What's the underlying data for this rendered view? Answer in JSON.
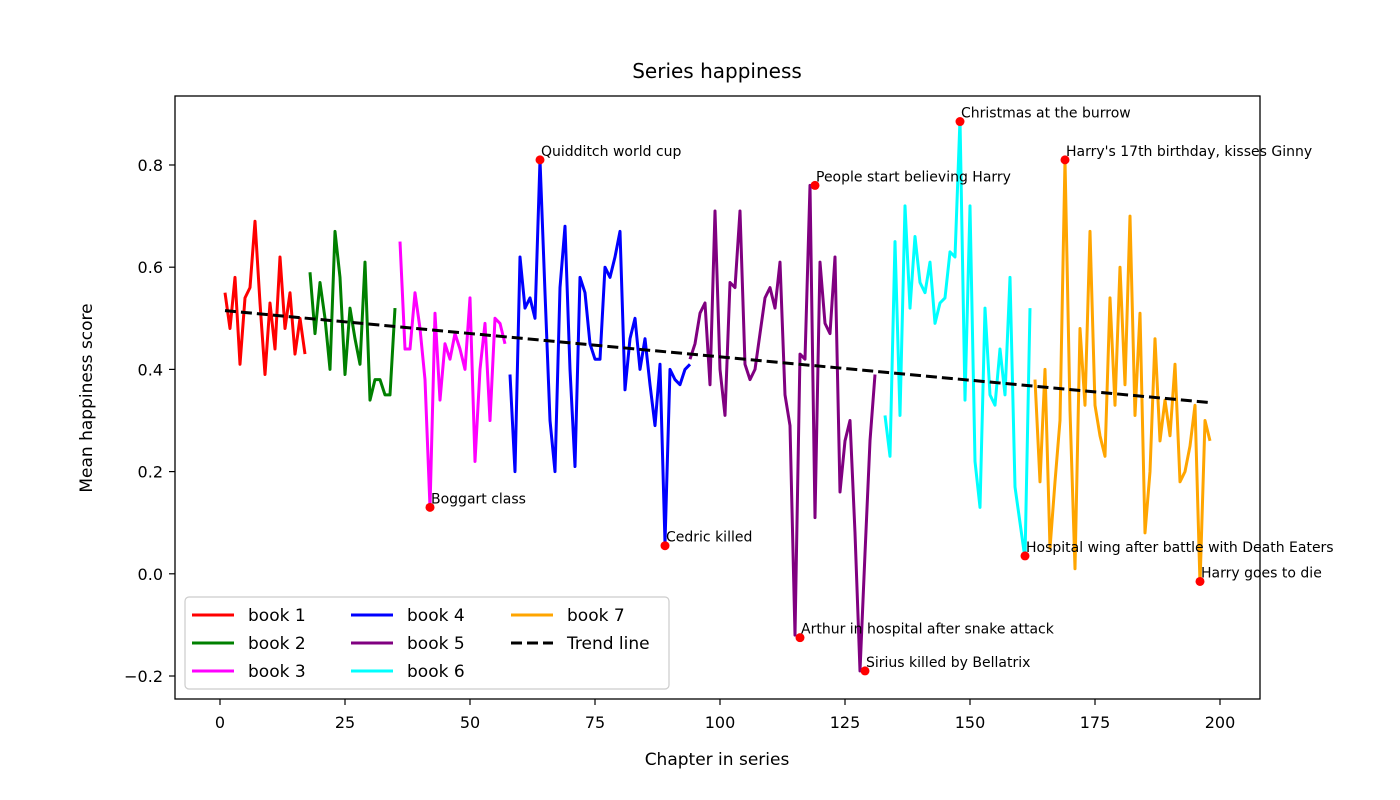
{
  "chart_data": {
    "type": "line",
    "title": "Series happiness",
    "xlabel": "Chapter in series",
    "ylabel": "Mean happiness score",
    "xlim": [
      -9,
      208
    ],
    "ylim": [
      -0.245,
      0.935
    ],
    "xticks": [
      0,
      25,
      50,
      75,
      100,
      125,
      150,
      175,
      200
    ],
    "yticks": [
      -0.2,
      0.0,
      0.2,
      0.4,
      0.6,
      0.8
    ],
    "ytick_labels": [
      "−0.2",
      "0.0",
      "0.2",
      "0.4",
      "0.6",
      "0.8"
    ],
    "grid": false,
    "legend_position": "lower-left",
    "series": [
      {
        "name": "book 1",
        "color": "#ff0000",
        "x_start": 1,
        "values": [
          0.55,
          0.48,
          0.58,
          0.41,
          0.54,
          0.56,
          0.69,
          0.53,
          0.39,
          0.53,
          0.44,
          0.62,
          0.48,
          0.55,
          0.43,
          0.5,
          0.43
        ]
      },
      {
        "name": "book 2",
        "color": "#008000",
        "x_start": 18,
        "values": [
          0.59,
          0.47,
          0.57,
          0.5,
          0.4,
          0.67,
          0.58,
          0.39,
          0.52,
          0.46,
          0.41,
          0.61,
          0.34,
          0.38,
          0.38,
          0.35,
          0.35,
          0.52
        ]
      },
      {
        "name": "book 3",
        "color": "#ff00ff",
        "x_start": 36,
        "values": [
          0.65,
          0.44,
          0.44,
          0.55,
          0.48,
          0.38,
          0.13,
          0.51,
          0.34,
          0.45,
          0.42,
          0.47,
          0.44,
          0.4,
          0.54,
          0.22,
          0.4,
          0.49,
          0.3,
          0.5,
          0.49,
          0.45
        ]
      },
      {
        "name": "book 4",
        "color": "#0000ff",
        "x_start": 58,
        "values": [
          0.39,
          0.2,
          0.62,
          0.52,
          0.54,
          0.5,
          0.81,
          0.55,
          0.3,
          0.2,
          0.56,
          0.68,
          0.4,
          0.21,
          0.58,
          0.55,
          0.45,
          0.42,
          0.42,
          0.6,
          0.58,
          0.62,
          0.67,
          0.36,
          0.46,
          0.5,
          0.4,
          0.46,
          0.37,
          0.29,
          0.41,
          0.06,
          0.4,
          0.38,
          0.37,
          0.4,
          0.41
        ]
      },
      {
        "name": "book 5",
        "color": "#800080",
        "x_start": 94,
        "values": [
          0.42,
          0.45,
          0.51,
          0.53,
          0.37,
          0.71,
          0.4,
          0.31,
          0.57,
          0.56,
          0.71,
          0.41,
          0.38,
          0.4,
          0.47,
          0.54,
          0.56,
          0.52,
          0.61,
          0.35,
          0.29,
          -0.12,
          0.43,
          0.42,
          0.76,
          0.11,
          0.61,
          0.49,
          0.47,
          0.62,
          0.16,
          0.26,
          0.3,
          0.08,
          -0.19,
          0.04,
          0.26,
          0.39
        ]
      },
      {
        "name": "book 6",
        "color": "#00ffff",
        "x_start": 133,
        "values": [
          0.31,
          0.23,
          0.65,
          0.31,
          0.72,
          0.52,
          0.66,
          0.57,
          0.55,
          0.61,
          0.49,
          0.53,
          0.54,
          0.63,
          0.62,
          0.89,
          0.34,
          0.72,
          0.22,
          0.13,
          0.52,
          0.35,
          0.33,
          0.44,
          0.35,
          0.58,
          0.17,
          0.1,
          0.03,
          0.52
        ]
      },
      {
        "name": "book 7",
        "color": "#ffa500",
        "x_start": 163,
        "values": [
          0.38,
          0.18,
          0.4,
          0.05,
          0.18,
          0.3,
          0.81,
          0.32,
          0.01,
          0.48,
          0.33,
          0.67,
          0.33,
          0.27,
          0.23,
          0.54,
          0.33,
          0.6,
          0.37,
          0.7,
          0.31,
          0.51,
          0.08,
          0.2,
          0.46,
          0.26,
          0.34,
          0.27,
          0.41,
          0.18,
          0.2,
          0.25,
          0.33,
          -0.02,
          0.3,
          0.26
        ]
      }
    ],
    "trend": {
      "name": "Trend line",
      "color": "#000000",
      "x": [
        1,
        198
      ],
      "y": [
        0.515,
        0.335
      ]
    },
    "annotations": [
      {
        "label": "Boggart class",
        "x": 42,
        "y": 0.13
      },
      {
        "label": "Quidditch world cup",
        "x": 64,
        "y": 0.81
      },
      {
        "label": "Cedric killed",
        "x": 89,
        "y": 0.055
      },
      {
        "label": "Arthur in hospital after snake attack",
        "x": 116,
        "y": -0.125
      },
      {
        "label": "People start believing Harry",
        "x": 119,
        "y": 0.76
      },
      {
        "label": "Sirius killed by Bellatrix",
        "x": 129,
        "y": -0.19
      },
      {
        "label": "Christmas at the burrow",
        "x": 148,
        "y": 0.885
      },
      {
        "label": "Hospital wing after battle with Death Eaters",
        "x": 161,
        "y": 0.035
      },
      {
        "label": "Harry's 17th birthday, kisses Ginny",
        "x": 169,
        "y": 0.81
      },
      {
        "label": "Harry goes to die",
        "x": 196,
        "y": -0.015
      }
    ],
    "marker_color": "#ff0000"
  }
}
